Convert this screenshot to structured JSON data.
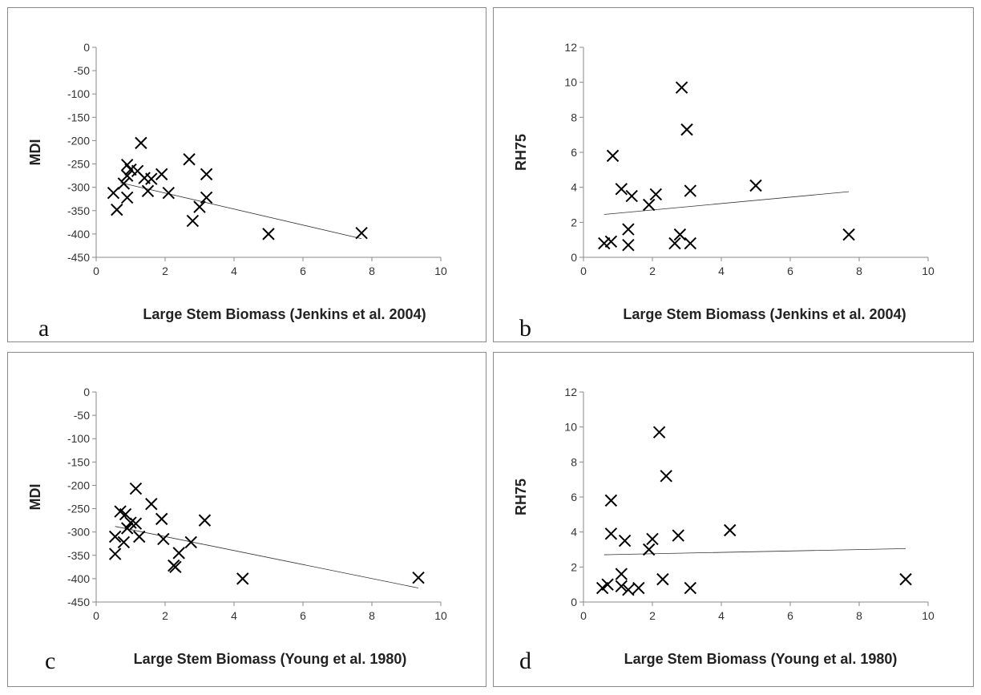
{
  "chart_data": [
    {
      "type": "scatter",
      "panel_label": "a",
      "xlabel": "Large Stem Biomass (Jenkins et al. 2004)",
      "ylabel": "MDI",
      "xlim": [
        0,
        10
      ],
      "ylim": [
        -450,
        0
      ],
      "xticks": [
        "0",
        "2",
        "4",
        "6",
        "8",
        "10"
      ],
      "yticks": [
        "0",
        "-50",
        "-100",
        "-150",
        "-200",
        "-250",
        "-300",
        "-350",
        "-400",
        "-450"
      ],
      "marker": "x",
      "points": [
        [
          0.9,
          -252
        ],
        [
          1.0,
          -262
        ],
        [
          1.2,
          -265
        ],
        [
          0.9,
          -275
        ],
        [
          1.4,
          -280
        ],
        [
          1.6,
          -282
        ],
        [
          0.8,
          -292
        ],
        [
          1.5,
          -308
        ],
        [
          0.5,
          -312
        ],
        [
          0.9,
          -322
        ],
        [
          0.6,
          -348
        ],
        [
          1.3,
          -205
        ],
        [
          1.9,
          -272
        ],
        [
          2.1,
          -312
        ],
        [
          2.7,
          -240
        ],
        [
          3.2,
          -272
        ],
        [
          3.2,
          -322
        ],
        [
          3.0,
          -342
        ],
        [
          2.8,
          -372
        ],
        [
          5.0,
          -400
        ],
        [
          7.7,
          -398
        ]
      ],
      "trendline": [
        [
          0.7,
          -290
        ],
        [
          7.7,
          -410
        ]
      ]
    },
    {
      "type": "scatter",
      "panel_label": "b",
      "xlabel": "Large Stem Biomass (Jenkins et al. 2004)",
      "ylabel": "RH75",
      "xlim": [
        0,
        10
      ],
      "ylim": [
        0,
        12
      ],
      "xticks": [
        "0",
        "2",
        "4",
        "6",
        "8",
        "10"
      ],
      "yticks": [
        "0",
        "2",
        "4",
        "6",
        "8",
        "10",
        "12"
      ],
      "marker": "x",
      "points": [
        [
          0.6,
          0.8
        ],
        [
          0.8,
          0.9
        ],
        [
          1.3,
          0.7
        ],
        [
          0.85,
          5.8
        ],
        [
          1.1,
          3.9
        ],
        [
          1.4,
          3.5
        ],
        [
          1.3,
          1.6
        ],
        [
          1.9,
          3.0
        ],
        [
          2.1,
          3.6
        ],
        [
          2.65,
          0.8
        ],
        [
          2.8,
          1.3
        ],
        [
          3.1,
          0.8
        ],
        [
          2.85,
          9.7
        ],
        [
          3.0,
          7.3
        ],
        [
          3.1,
          3.8
        ],
        [
          5.0,
          4.1
        ],
        [
          7.7,
          1.3
        ]
      ],
      "trendline": [
        [
          0.6,
          2.45
        ],
        [
          7.7,
          3.75
        ]
      ]
    },
    {
      "type": "scatter",
      "panel_label": "c",
      "xlabel": "Large Stem Biomass (Young et al. 1980)",
      "ylabel": "MDI",
      "xlim": [
        0,
        10
      ],
      "ylim": [
        -450,
        0
      ],
      "xticks": [
        "0",
        "2",
        "4",
        "6",
        "8",
        "10"
      ],
      "yticks": [
        "0",
        "-50",
        "-100",
        "-150",
        "-200",
        "-250",
        "-300",
        "-350",
        "-400",
        "-450"
      ],
      "marker": "x",
      "points": [
        [
          0.7,
          -256
        ],
        [
          0.85,
          -262
        ],
        [
          1.0,
          -280
        ],
        [
          1.15,
          -282
        ],
        [
          0.9,
          -292
        ],
        [
          0.55,
          -310
        ],
        [
          1.25,
          -310
        ],
        [
          0.8,
          -322
        ],
        [
          0.55,
          -347
        ],
        [
          1.15,
          -207
        ],
        [
          1.6,
          -240
        ],
        [
          1.9,
          -272
        ],
        [
          1.95,
          -315
        ],
        [
          2.75,
          -322
        ],
        [
          2.4,
          -345
        ],
        [
          2.25,
          -372
        ],
        [
          2.3,
          -375
        ],
        [
          3.15,
          -275
        ],
        [
          4.25,
          -400
        ],
        [
          9.35,
          -398
        ]
      ],
      "trendline": [
        [
          0.55,
          -288
        ],
        [
          9.35,
          -420
        ]
      ]
    },
    {
      "type": "scatter",
      "panel_label": "d",
      "xlabel": "Large Stem Biomass (Young et al. 1980)",
      "ylabel": "RH75",
      "xlim": [
        0,
        10
      ],
      "ylim": [
        0,
        12
      ],
      "xticks": [
        "0",
        "2",
        "4",
        "6",
        "8",
        "10"
      ],
      "yticks": [
        "0",
        "2",
        "4",
        "6",
        "8",
        "10",
        "12"
      ],
      "marker": "x",
      "points": [
        [
          0.55,
          0.8
        ],
        [
          0.7,
          1.0
        ],
        [
          1.1,
          0.9
        ],
        [
          1.3,
          0.7
        ],
        [
          1.6,
          0.8
        ],
        [
          0.8,
          5.8
        ],
        [
          0.8,
          3.9
        ],
        [
          1.2,
          3.5
        ],
        [
          1.1,
          1.6
        ],
        [
          1.9,
          3.0
        ],
        [
          2.0,
          3.6
        ],
        [
          2.75,
          3.8
        ],
        [
          2.2,
          9.7
        ],
        [
          2.4,
          7.2
        ],
        [
          2.3,
          1.3
        ],
        [
          3.1,
          0.8
        ],
        [
          4.25,
          4.1
        ],
        [
          9.35,
          1.3
        ]
      ],
      "trendline": [
        [
          0.6,
          2.7
        ],
        [
          9.35,
          3.05
        ]
      ]
    }
  ]
}
